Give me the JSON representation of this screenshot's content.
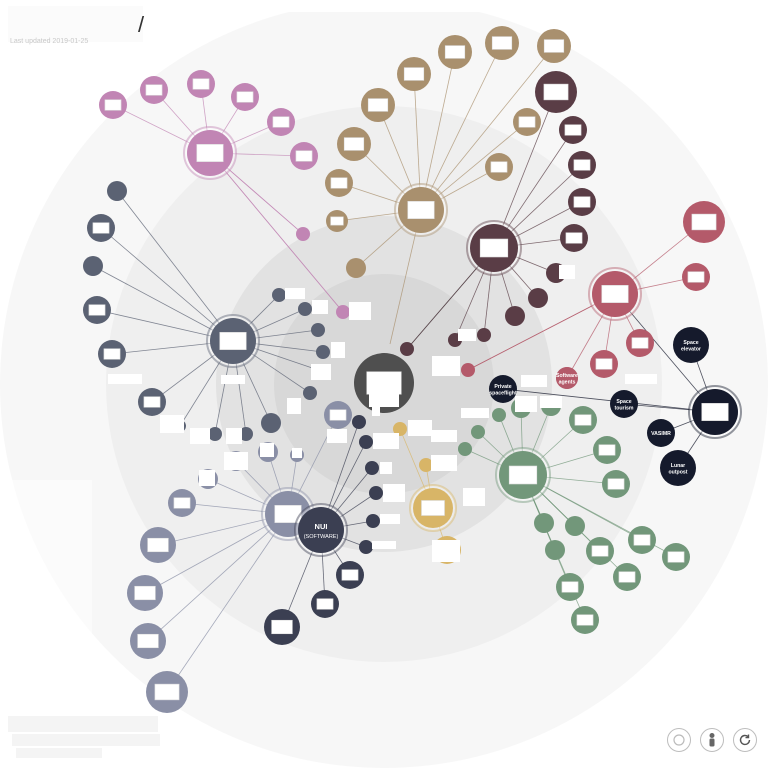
{
  "header": {
    "last_updated": "Last updated 2019-01-25"
  },
  "colors": {
    "rings": [
      "#f7f7f7",
      "#efefef",
      "#e2e2e2",
      "#d8d8d8"
    ],
    "pink": "#c185b4",
    "tan": "#a9906e",
    "wine": "#5a3d46",
    "slate": "#5b6273",
    "lavender": "#8a8fa6",
    "navy": "#3b3f52",
    "gold": "#d8b567",
    "green": "#72977a",
    "red": "#b45a6a",
    "dark_navy": "#151a2c",
    "center": "#4f4f4f"
  },
  "graph": {
    "labels": {
      "nui": "NUI",
      "nui_sub": "(SOFTWARE)",
      "software_agents": [
        "Software",
        "agents"
      ],
      "private_spaceflight": [
        "Private",
        "spaceflight"
      ],
      "space_tourism": [
        "Space",
        "tourism"
      ],
      "space_elevator": [
        "Space",
        "elevator"
      ],
      "vasimr": [
        "VASIMR"
      ],
      "lunar_outpost": [
        "Lunar",
        "outpost"
      ]
    }
  },
  "controls": {
    "reset_icon": "circle-icon",
    "person_icon": "person-icon",
    "refresh_icon": "refresh-icon"
  }
}
